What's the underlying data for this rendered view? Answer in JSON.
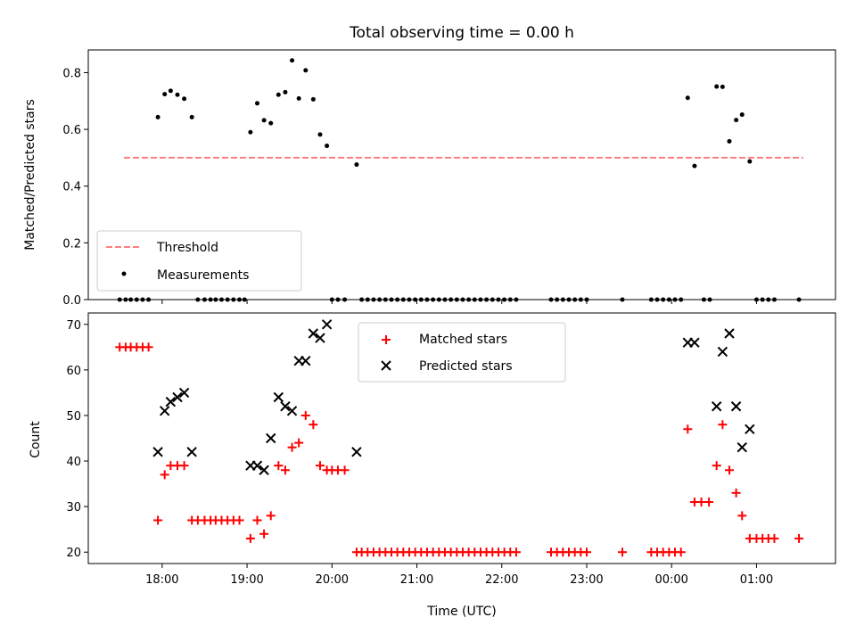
{
  "title": "Total observing time = 0.00 h",
  "colors": {
    "threshold": "#ff7f7f",
    "measurements": "#000000",
    "matched": "#ff0000",
    "predicted": "#000000"
  },
  "chart_data": [
    {
      "type": "scatter",
      "panel": "top",
      "ylabel": "Matched/Predicted stars",
      "xlim": [
        17.13,
        25.93
      ],
      "ylim": [
        0.0,
        0.88
      ],
      "yticks": [
        0.0,
        0.2,
        0.4,
        0.6,
        0.8
      ],
      "ytick_labels": [
        "0.0",
        "0.2",
        "0.4",
        "0.6",
        "0.8"
      ],
      "grid": false,
      "legend": "lower left",
      "threshold": {
        "name": "Threshold",
        "value": 0.5,
        "x_range": [
          17.55,
          25.55
        ],
        "style": "dashed"
      },
      "series": [
        {
          "name": "Measurements",
          "points": [
            [
              17.5,
              0.0
            ],
            [
              17.57,
              0.0
            ],
            [
              17.63,
              0.0
            ],
            [
              17.7,
              0.0
            ],
            [
              17.77,
              0.0
            ],
            [
              17.84,
              0.0
            ],
            [
              17.95,
              0.643
            ],
            [
              18.03,
              0.724
            ],
            [
              18.1,
              0.736
            ],
            [
              18.18,
              0.722
            ],
            [
              18.26,
              0.708
            ],
            [
              18.35,
              0.643
            ],
            [
              18.42,
              0.0
            ],
            [
              18.5,
              0.0
            ],
            [
              18.57,
              0.0
            ],
            [
              18.63,
              0.0
            ],
            [
              18.7,
              0.0
            ],
            [
              18.77,
              0.0
            ],
            [
              18.84,
              0.0
            ],
            [
              18.91,
              0.0
            ],
            [
              18.97,
              0.0
            ],
            [
              19.04,
              0.59
            ],
            [
              19.12,
              0.692
            ],
            [
              19.2,
              0.632
            ],
            [
              19.28,
              0.622
            ],
            [
              19.37,
              0.722
            ],
            [
              19.45,
              0.731
            ],
            [
              19.53,
              0.843
            ],
            [
              19.61,
              0.709
            ],
            [
              19.69,
              0.808
            ],
            [
              19.78,
              0.706
            ],
            [
              19.86,
              0.582
            ],
            [
              19.94,
              0.542
            ],
            [
              20.0,
              0.0
            ],
            [
              20.07,
              0.0
            ],
            [
              20.15,
              0.0
            ],
            [
              20.29,
              0.476
            ],
            [
              20.35,
              0.0
            ],
            [
              20.42,
              0.0
            ],
            [
              20.49,
              0.0
            ],
            [
              20.56,
              0.0
            ],
            [
              20.63,
              0.0
            ],
            [
              20.7,
              0.0
            ],
            [
              20.77,
              0.0
            ],
            [
              20.84,
              0.0
            ],
            [
              20.91,
              0.0
            ],
            [
              20.98,
              0.0
            ],
            [
              21.05,
              0.0
            ],
            [
              21.12,
              0.0
            ],
            [
              21.19,
              0.0
            ],
            [
              21.26,
              0.0
            ],
            [
              21.33,
              0.0
            ],
            [
              21.4,
              0.0
            ],
            [
              21.47,
              0.0
            ],
            [
              21.54,
              0.0
            ],
            [
              21.61,
              0.0
            ],
            [
              21.68,
              0.0
            ],
            [
              21.75,
              0.0
            ],
            [
              21.82,
              0.0
            ],
            [
              21.89,
              0.0
            ],
            [
              21.96,
              0.0
            ],
            [
              22.03,
              0.0
            ],
            [
              22.1,
              0.0
            ],
            [
              22.17,
              0.0
            ],
            [
              22.58,
              0.0
            ],
            [
              22.65,
              0.0
            ],
            [
              22.72,
              0.0
            ],
            [
              22.79,
              0.0
            ],
            [
              22.86,
              0.0
            ],
            [
              22.93,
              0.0
            ],
            [
              23.0,
              0.0
            ],
            [
              23.42,
              0.0
            ],
            [
              23.76,
              0.0
            ],
            [
              23.83,
              0.0
            ],
            [
              23.9,
              0.0
            ],
            [
              23.97,
              0.0
            ],
            [
              24.04,
              0.0
            ],
            [
              24.11,
              0.0
            ],
            [
              24.19,
              0.711
            ],
            [
              24.27,
              0.471
            ],
            [
              24.38,
              0.0
            ],
            [
              24.45,
              0.0
            ],
            [
              24.53,
              0.751
            ],
            [
              24.6,
              0.75
            ],
            [
              24.68,
              0.558
            ],
            [
              24.76,
              0.633
            ],
            [
              24.83,
              0.652
            ],
            [
              24.92,
              0.487
            ],
            [
              25.0,
              0.0
            ],
            [
              25.07,
              0.0
            ],
            [
              25.14,
              0.0
            ],
            [
              25.21,
              0.0
            ],
            [
              25.5,
              0.0
            ]
          ]
        }
      ]
    },
    {
      "type": "scatter",
      "panel": "bottom",
      "xlabel": "Time (UTC)",
      "ylabel": "Count",
      "xlim": [
        17.13,
        25.93
      ],
      "ylim": [
        17.5,
        72.5
      ],
      "yticks": [
        20,
        30,
        40,
        50,
        60,
        70
      ],
      "ytick_labels": [
        "20",
        "30",
        "40",
        "50",
        "60",
        "70"
      ],
      "xticks": [
        18,
        19,
        20,
        21,
        22,
        23,
        24,
        25
      ],
      "xtick_labels": [
        "18:00",
        "19:00",
        "20:00",
        "21:00",
        "22:00",
        "23:00",
        "00:00",
        "01:00"
      ],
      "grid": false,
      "legend": "upper center",
      "series": [
        {
          "name": "Matched stars",
          "marker": "plus",
          "points": [
            [
              17.5,
              65
            ],
            [
              17.57,
              65
            ],
            [
              17.63,
              65
            ],
            [
              17.7,
              65
            ],
            [
              17.77,
              65
            ],
            [
              17.84,
              65
            ],
            [
              17.95,
              27
            ],
            [
              18.03,
              37
            ],
            [
              18.1,
              39
            ],
            [
              18.18,
              39
            ],
            [
              18.26,
              39
            ],
            [
              18.35,
              27
            ],
            [
              18.42,
              27
            ],
            [
              18.5,
              27
            ],
            [
              18.57,
              27
            ],
            [
              18.63,
              27
            ],
            [
              18.7,
              27
            ],
            [
              18.77,
              27
            ],
            [
              18.84,
              27
            ],
            [
              18.91,
              27
            ],
            [
              19.04,
              23
            ],
            [
              19.12,
              27
            ],
            [
              19.2,
              24
            ],
            [
              19.28,
              28
            ],
            [
              19.37,
              39
            ],
            [
              19.45,
              38
            ],
            [
              19.53,
              43
            ],
            [
              19.61,
              44
            ],
            [
              19.69,
              50
            ],
            [
              19.78,
              48
            ],
            [
              19.86,
              39
            ],
            [
              19.94,
              38
            ],
            [
              20.0,
              38
            ],
            [
              20.07,
              38
            ],
            [
              20.15,
              38
            ],
            [
              20.29,
              20
            ],
            [
              20.35,
              20
            ],
            [
              20.42,
              20
            ],
            [
              20.49,
              20
            ],
            [
              20.56,
              20
            ],
            [
              20.63,
              20
            ],
            [
              20.7,
              20
            ],
            [
              20.77,
              20
            ],
            [
              20.84,
              20
            ],
            [
              20.91,
              20
            ],
            [
              20.98,
              20
            ],
            [
              21.05,
              20
            ],
            [
              21.12,
              20
            ],
            [
              21.19,
              20
            ],
            [
              21.26,
              20
            ],
            [
              21.33,
              20
            ],
            [
              21.4,
              20
            ],
            [
              21.47,
              20
            ],
            [
              21.54,
              20
            ],
            [
              21.61,
              20
            ],
            [
              21.68,
              20
            ],
            [
              21.75,
              20
            ],
            [
              21.82,
              20
            ],
            [
              21.89,
              20
            ],
            [
              21.96,
              20
            ],
            [
              22.03,
              20
            ],
            [
              22.1,
              20
            ],
            [
              22.17,
              20
            ],
            [
              22.58,
              20
            ],
            [
              22.65,
              20
            ],
            [
              22.72,
              20
            ],
            [
              22.79,
              20
            ],
            [
              22.86,
              20
            ],
            [
              22.93,
              20
            ],
            [
              23.0,
              20
            ],
            [
              23.42,
              20
            ],
            [
              23.76,
              20
            ],
            [
              23.83,
              20
            ],
            [
              23.9,
              20
            ],
            [
              23.97,
              20
            ],
            [
              24.04,
              20
            ],
            [
              24.11,
              20
            ],
            [
              24.19,
              47
            ],
            [
              24.27,
              31
            ],
            [
              24.35,
              31
            ],
            [
              24.44,
              31
            ],
            [
              24.53,
              39
            ],
            [
              24.6,
              48
            ],
            [
              24.68,
              38
            ],
            [
              24.76,
              33
            ],
            [
              24.83,
              28
            ],
            [
              24.92,
              23
            ],
            [
              25.0,
              23
            ],
            [
              25.07,
              23
            ],
            [
              25.14,
              23
            ],
            [
              25.21,
              23
            ],
            [
              25.5,
              23
            ]
          ]
        },
        {
          "name": "Predicted stars",
          "marker": "x",
          "points": [
            [
              17.95,
              42
            ],
            [
              18.03,
              51
            ],
            [
              18.1,
              53
            ],
            [
              18.18,
              54
            ],
            [
              18.26,
              55
            ],
            [
              18.35,
              42
            ],
            [
              19.04,
              39
            ],
            [
              19.12,
              39
            ],
            [
              19.2,
              38
            ],
            [
              19.28,
              45
            ],
            [
              19.37,
              54
            ],
            [
              19.45,
              52
            ],
            [
              19.53,
              51
            ],
            [
              19.61,
              62
            ],
            [
              19.69,
              62
            ],
            [
              19.78,
              68
            ],
            [
              19.86,
              67
            ],
            [
              19.94,
              70
            ],
            [
              20.29,
              42
            ],
            [
              24.19,
              66
            ],
            [
              24.27,
              66
            ],
            [
              24.53,
              52
            ],
            [
              24.6,
              64
            ],
            [
              24.68,
              68
            ],
            [
              24.76,
              52
            ],
            [
              24.83,
              43
            ],
            [
              24.92,
              47
            ]
          ]
        }
      ]
    }
  ]
}
